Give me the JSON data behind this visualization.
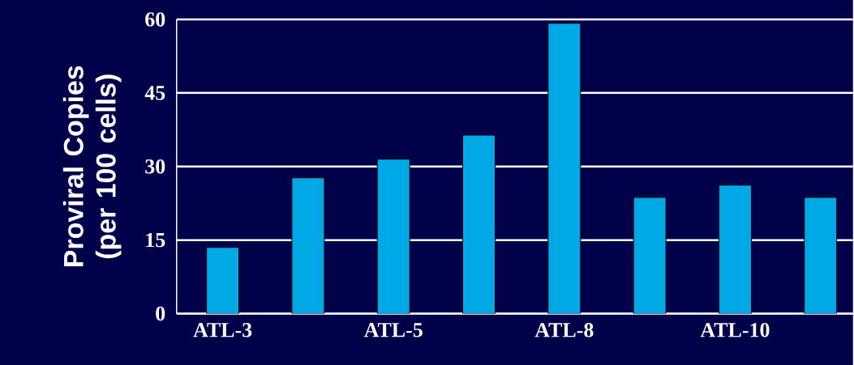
{
  "chart_data": {
    "type": "bar",
    "ylabel": "Proviral Copies (per 100 cells)",
    "categories": [
      "ATL-3",
      null,
      "ATL-5",
      null,
      "ATL-8",
      null,
      "ATL-10",
      null
    ],
    "values": [
      13.5,
      27.7,
      31.5,
      36.4,
      59.2,
      23.7,
      26.2,
      23.7
    ],
    "color": "#00a8e6",
    "ylim": [
      0,
      60
    ],
    "yticks": [
      0,
      15,
      30,
      45,
      60
    ],
    "grid": "y"
  }
}
